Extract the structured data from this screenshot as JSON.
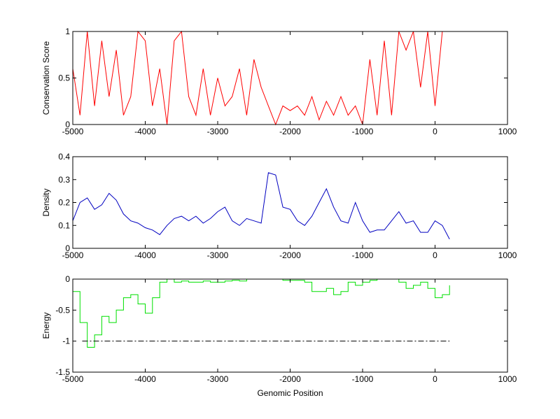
{
  "chart_data": [
    {
      "type": "line",
      "ylabel": "Conservation Score",
      "color": "#ff0000",
      "x": [
        -5000,
        -4900,
        -4800,
        -4700,
        -4600,
        -4500,
        -4400,
        -4300,
        -4200,
        -4100,
        -4000,
        -3900,
        -3800,
        -3700,
        -3600,
        -3500,
        -3400,
        -3300,
        -3200,
        -3100,
        -3000,
        -2900,
        -2800,
        -2700,
        -2600,
        -2500,
        -2400,
        -2300,
        -2200,
        -2100,
        -2000,
        -1900,
        -1800,
        -1700,
        -1600,
        -1500,
        -1400,
        -1300,
        -1200,
        -1100,
        -1000,
        -900,
        -800,
        -700,
        -600,
        -500,
        -400,
        -300,
        -200,
        -100,
        0,
        100,
        200
      ],
      "values": [
        0.6,
        0.1,
        1,
        0.2,
        0.9,
        0.3,
        0.8,
        0.1,
        0.3,
        1,
        0.9,
        0.2,
        0.6,
        0,
        0.9,
        1,
        0.3,
        0.1,
        0.6,
        0.1,
        0.5,
        0.2,
        0.3,
        0.6,
        0.1,
        0.7,
        0.4,
        0.2,
        0,
        0.2,
        0.15,
        0.2,
        0.1,
        0.3,
        0.05,
        0.25,
        0.1,
        0.3,
        0.1,
        0.2,
        0,
        0.7,
        0.1,
        0.9,
        0.1,
        1,
        0.8,
        1,
        0.4,
        1,
        0.2,
        1,
        1
      ],
      "xlim": [
        -5000,
        1000
      ],
      "xticks": [
        -5000,
        -4000,
        -3000,
        -2000,
        -1000,
        0,
        1000
      ],
      "ylim": [
        0,
        1
      ],
      "yticks": [
        0,
        0.5,
        1
      ]
    },
    {
      "type": "line",
      "ylabel": "Density",
      "color": "#0000c0",
      "x": [
        -5000,
        -4900,
        -4800,
        -4700,
        -4600,
        -4500,
        -4400,
        -4300,
        -4200,
        -4100,
        -4000,
        -3900,
        -3800,
        -3700,
        -3600,
        -3500,
        -3400,
        -3300,
        -3200,
        -3100,
        -3000,
        -2900,
        -2800,
        -2700,
        -2600,
        -2500,
        -2400,
        -2300,
        -2200,
        -2100,
        -2000,
        -1900,
        -1800,
        -1700,
        -1600,
        -1500,
        -1400,
        -1300,
        -1200,
        -1100,
        -1000,
        -900,
        -800,
        -700,
        -600,
        -500,
        -400,
        -300,
        -200,
        -100,
        0,
        100,
        200
      ],
      "values": [
        0.12,
        0.2,
        0.22,
        0.17,
        0.19,
        0.24,
        0.21,
        0.15,
        0.12,
        0.11,
        0.09,
        0.08,
        0.06,
        0.1,
        0.13,
        0.14,
        0.12,
        0.14,
        0.11,
        0.13,
        0.16,
        0.18,
        0.12,
        0.1,
        0.13,
        0.12,
        0.11,
        0.33,
        0.32,
        0.18,
        0.17,
        0.12,
        0.1,
        0.14,
        0.2,
        0.26,
        0.18,
        0.12,
        0.11,
        0.2,
        0.12,
        0.07,
        0.08,
        0.08,
        0.12,
        0.16,
        0.11,
        0.12,
        0.07,
        0.07,
        0.12,
        0.1,
        0.04
      ],
      "xlim": [
        -5000,
        1000
      ],
      "xticks": [
        -5000,
        -4000,
        -3000,
        -2000,
        -1000,
        0,
        1000
      ],
      "ylim": [
        0,
        0.4
      ],
      "yticks": [
        0,
        0.1,
        0.2,
        0.3,
        0.4
      ]
    },
    {
      "type": "step",
      "ylabel": "Energy",
      "xlabel": "Genomic Position",
      "color": "#00e000",
      "x": [
        -5000,
        -4900,
        -4800,
        -4700,
        -4600,
        -4500,
        -4400,
        -4300,
        -4200,
        -4100,
        -4000,
        -3900,
        -3800,
        -3700,
        -3600,
        -3500,
        -3400,
        -3300,
        -3200,
        -3100,
        -3000,
        -2900,
        -2800,
        -2700,
        -2600,
        -2500,
        -2400,
        -2300,
        -2200,
        -2100,
        -2000,
        -1900,
        -1800,
        -1700,
        -1600,
        -1500,
        -1400,
        -1300,
        -1200,
        -1100,
        -1000,
        -900,
        -800,
        -700,
        -600,
        -500,
        -400,
        -300,
        -200,
        -100,
        0,
        100,
        200
      ],
      "values": [
        -0.2,
        -0.7,
        -1.1,
        -0.9,
        -0.6,
        -0.7,
        -0.5,
        -0.3,
        -0.25,
        -0.4,
        -0.55,
        -0.3,
        -0.05,
        0,
        -0.05,
        -0.03,
        -0.05,
        -0.05,
        -0.03,
        -0.05,
        -0.05,
        -0.03,
        -0.02,
        -0.03,
        0,
        0,
        0,
        0,
        0,
        -0.02,
        -0.02,
        -0.02,
        -0.05,
        -0.2,
        -0.2,
        -0.15,
        -0.25,
        -0.2,
        -0.05,
        -0.1,
        -0.05,
        -0.02,
        0,
        0,
        0,
        -0.05,
        -0.15,
        -0.1,
        -0.05,
        -0.15,
        -0.3,
        -0.25,
        -0.1
      ],
      "hline": {
        "value": -1,
        "xrange": [
          -4870,
          200
        ],
        "color": "#000000"
      },
      "xlim": [
        -5000,
        1000
      ],
      "xticks": [
        -5000,
        -4000,
        -3000,
        -2000,
        -1000,
        0,
        1000
      ],
      "ylim": [
        -1.5,
        0
      ],
      "yticks": [
        -1.5,
        -1,
        -0.5,
        0
      ]
    }
  ]
}
